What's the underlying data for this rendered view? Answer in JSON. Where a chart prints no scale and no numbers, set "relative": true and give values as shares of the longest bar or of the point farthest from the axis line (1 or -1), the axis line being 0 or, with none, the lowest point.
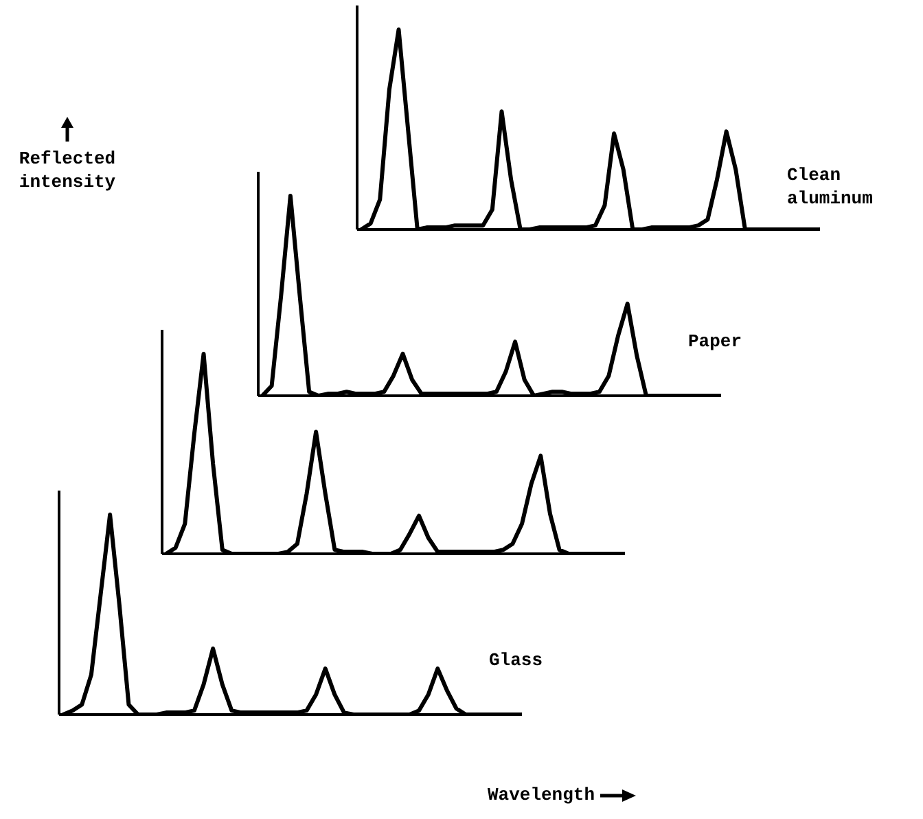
{
  "chart_data": [
    {
      "type": "line",
      "relative": true,
      "ylabel": "Reflected intensity",
      "categories": [
        null,
        null,
        null,
        null,
        null,
        null,
        null,
        null,
        null,
        null,
        null,
        null,
        null,
        null,
        null,
        null,
        null,
        null,
        null,
        null,
        null,
        null,
        null,
        null,
        null,
        null,
        null,
        null,
        null,
        null,
        null,
        null,
        null,
        null,
        null,
        null,
        null,
        null,
        null,
        null,
        null,
        null,
        null,
        null,
        null,
        null,
        null,
        null,
        null,
        null
      ],
      "series": [
        {
          "name": "Clean aluminum",
          "color": "#000000",
          "values": [
            0,
            0.03,
            0.15,
            0.7,
            1,
            0.5,
            0,
            0.01,
            0.01,
            0.01,
            0.02,
            0.02,
            0.02,
            0.02,
            0.1,
            0.59,
            0.25,
            0,
            0,
            0.01,
            0.01,
            0.01,
            0.01,
            0.01,
            0.01,
            0.02,
            0.12,
            0.48,
            0.3,
            0,
            0,
            0.01,
            0.01,
            0.01,
            0.01,
            0.01,
            0.02,
            0.05,
            0.25,
            0.49,
            0.3,
            0,
            0,
            0,
            0,
            0,
            0,
            0,
            0,
            0
          ]
        }
      ]
    },
    {
      "type": "line",
      "relative": true,
      "categories": [
        null,
        null,
        null,
        null,
        null,
        null,
        null,
        null,
        null,
        null,
        null,
        null,
        null,
        null,
        null,
        null,
        null,
        null,
        null,
        null,
        null,
        null,
        null,
        null,
        null,
        null,
        null,
        null,
        null,
        null,
        null,
        null,
        null,
        null,
        null,
        null,
        null,
        null,
        null,
        null,
        null,
        null,
        null,
        null,
        null,
        null,
        null,
        null,
        null,
        null
      ],
      "series": [
        {
          "name": "Paper",
          "color": "#000000",
          "values": [
            0,
            0.05,
            0.5,
            1,
            0.5,
            0.02,
            0,
            0.01,
            0.01,
            0.02,
            0.01,
            0.01,
            0.01,
            0.02,
            0.1,
            0.21,
            0.08,
            0.01,
            0.01,
            0.01,
            0.01,
            0.01,
            0.01,
            0.01,
            0.01,
            0.02,
            0.12,
            0.27,
            0.08,
            0,
            0.01,
            0.02,
            0.02,
            0.01,
            0.01,
            0.01,
            0.02,
            0.1,
            0.3,
            0.46,
            0.2,
            0,
            0,
            0,
            0,
            0,
            0,
            0,
            0,
            0
          ]
        }
      ]
    },
    {
      "type": "line",
      "relative": true,
      "categories": [
        null,
        null,
        null,
        null,
        null,
        null,
        null,
        null,
        null,
        null,
        null,
        null,
        null,
        null,
        null,
        null,
        null,
        null,
        null,
        null,
        null,
        null,
        null,
        null,
        null,
        null,
        null,
        null,
        null,
        null,
        null,
        null,
        null,
        null,
        null,
        null,
        null,
        null,
        null,
        null,
        null,
        null,
        null,
        null,
        null,
        null,
        null,
        null,
        null,
        null
      ],
      "series": [
        {
          "color": "#000000",
          "values": [
            0,
            0.03,
            0.15,
            0.6,
            1,
            0.45,
            0.02,
            0,
            0,
            0,
            0,
            0,
            0,
            0.01,
            0.05,
            0.3,
            0.61,
            0.3,
            0.02,
            0.01,
            0.01,
            0.01,
            0,
            0,
            0,
            0.02,
            0.1,
            0.19,
            0.08,
            0.01,
            0.01,
            0.01,
            0.01,
            0.01,
            0.01,
            0.01,
            0.02,
            0.05,
            0.15,
            0.35,
            0.49,
            0.2,
            0.02,
            0,
            0,
            0,
            0,
            0,
            0,
            0
          ]
        }
      ]
    },
    {
      "type": "line",
      "relative": true,
      "xlabel": "Wavelength",
      "categories": [
        null,
        null,
        null,
        null,
        null,
        null,
        null,
        null,
        null,
        null,
        null,
        null,
        null,
        null,
        null,
        null,
        null,
        null,
        null,
        null,
        null,
        null,
        null,
        null,
        null,
        null,
        null,
        null,
        null,
        null,
        null,
        null,
        null,
        null,
        null,
        null,
        null,
        null,
        null,
        null,
        null,
        null,
        null,
        null,
        null,
        null,
        null,
        null,
        null,
        null
      ],
      "series": [
        {
          "name": "Glass",
          "color": "#000000",
          "values": [
            0,
            0.02,
            0.05,
            0.2,
            0.6,
            1,
            0.55,
            0.05,
            0,
            0,
            0,
            0.01,
            0.01,
            0.01,
            0.02,
            0.15,
            0.33,
            0.15,
            0.02,
            0.01,
            0.01,
            0.01,
            0.01,
            0.01,
            0.01,
            0.01,
            0.02,
            0.1,
            0.23,
            0.1,
            0.01,
            0,
            0,
            0,
            0,
            0,
            0,
            0,
            0.02,
            0.1,
            0.23,
            0.12,
            0.03,
            0,
            0,
            0,
            0,
            0,
            0,
            0
          ]
        }
      ]
    }
  ]
}
